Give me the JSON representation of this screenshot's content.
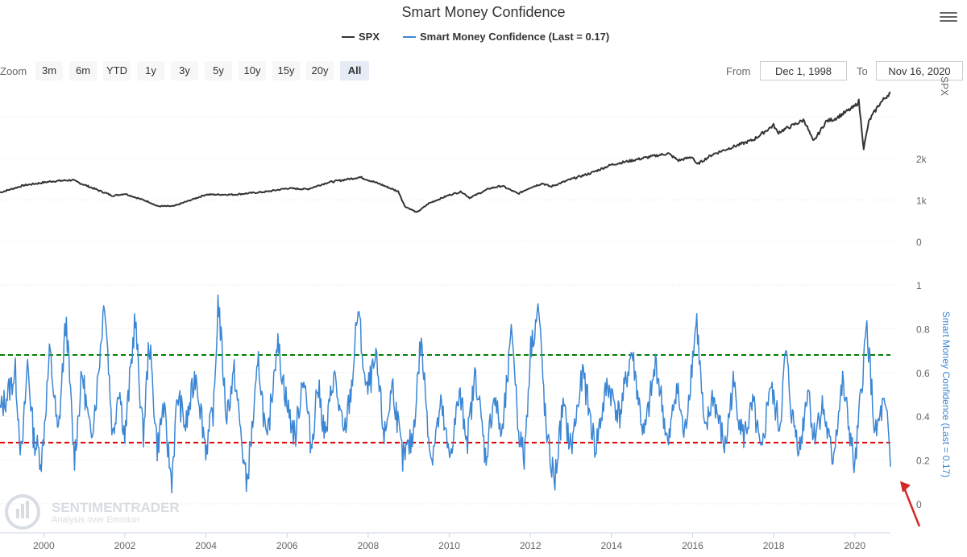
{
  "title": "Smart Money Confidence",
  "legend": [
    {
      "label": "SPX",
      "color": "#333333"
    },
    {
      "label": "Smart Money Confidence (Last = 0.17)",
      "color": "#3b86d4"
    }
  ],
  "zoom": {
    "label": "Zoom",
    "buttons": [
      "3m",
      "6m",
      "YTD",
      "1y",
      "3y",
      "5y",
      "10y",
      "15y",
      "20y",
      "All"
    ],
    "active": "All"
  },
  "range": {
    "from_label": "From",
    "from_value": "Dec 1, 1998",
    "to_label": "To",
    "to_value": "Nov 16, 2020"
  },
  "watermark": {
    "name": "SENTIMENTRADER",
    "tagline": "Analysis over Emotion"
  },
  "menu_icon": "hamburger-menu-icon",
  "chart_data": [
    {
      "type": "line",
      "series": [
        {
          "name": "SPX",
          "color": "#333333",
          "x": [
            1998.92,
            1999.5,
            2000.2,
            2000.7,
            2001.3,
            2001.7,
            2002.0,
            2002.6,
            2002.8,
            2003.2,
            2004.0,
            2004.7,
            2005.5,
            2006.0,
            2006.5,
            2007.0,
            2007.5,
            2007.8,
            2008.3,
            2008.75,
            2008.9,
            2009.2,
            2009.5,
            2010.0,
            2010.3,
            2010.5,
            2011.0,
            2011.3,
            2011.7,
            2012.0,
            2012.3,
            2012.5,
            2013.0,
            2013.5,
            2014.0,
            2014.5,
            2015.0,
            2015.4,
            2015.65,
            2016.0,
            2016.1,
            2016.5,
            2017.0,
            2017.5,
            2018.0,
            2018.1,
            2018.75,
            2018.98,
            2019.3,
            2019.5,
            2020.0,
            2020.1,
            2020.22,
            2020.35,
            2020.6,
            2020.88
          ],
          "y": [
            1180,
            1350,
            1450,
            1480,
            1250,
            1100,
            1150,
            950,
            850,
            850,
            1130,
            1130,
            1200,
            1280,
            1260,
            1420,
            1500,
            1550,
            1380,
            1200,
            850,
            700,
            920,
            1120,
            1200,
            1050,
            1280,
            1340,
            1150,
            1300,
            1400,
            1320,
            1500,
            1650,
            1850,
            1950,
            2050,
            2120,
            1950,
            2040,
            1850,
            2100,
            2280,
            2450,
            2800,
            2620,
            2930,
            2400,
            2900,
            2950,
            3250,
            3380,
            2240,
            2900,
            3300,
            3600
          ]
        },
        {
          "name": "",
          "color": "#d9d9d9",
          "x": [],
          "y": []
        }
      ],
      "ylabel": "SPX",
      "yticks": [
        0,
        1000,
        2000
      ],
      "ytick_labels": [
        "0",
        "1k",
        "2k"
      ],
      "ylim": [
        0,
        3800
      ],
      "xlim": [
        1998.92,
        2020.88
      ],
      "grid": true
    },
    {
      "type": "line",
      "series": [
        {
          "name": "Smart Money Confidence (Last = 0.17)",
          "color": "#3b86d4",
          "x": [
            1998.92,
            1999.1,
            1999.3,
            1999.45,
            1999.6,
            1999.75,
            1999.95,
            2000.15,
            2000.35,
            2000.55,
            2000.75,
            2000.95,
            2001.15,
            2001.3,
            2001.5,
            2001.7,
            2001.85,
            2002.0,
            2002.25,
            2002.45,
            2002.6,
            2002.8,
            2002.95,
            2003.15,
            2003.3,
            2003.5,
            2003.75,
            2004.0,
            2004.2,
            2004.3,
            2004.5,
            2004.7,
            2004.9,
            2005.0,
            2005.3,
            2005.5,
            2005.75,
            2006.0,
            2006.2,
            2006.4,
            2006.6,
            2006.75,
            2006.95,
            2007.15,
            2007.4,
            2007.6,
            2007.75,
            2007.95,
            2008.2,
            2008.4,
            2008.6,
            2008.85,
            2009.1,
            2009.3,
            2009.55,
            2009.8,
            2010.0,
            2010.25,
            2010.45,
            2010.65,
            2010.9,
            2011.1,
            2011.3,
            2011.55,
            2011.7,
            2011.85,
            2012.0,
            2012.2,
            2012.4,
            2012.6,
            2012.8,
            2013.0,
            2013.3,
            2013.6,
            2013.9,
            2014.2,
            2014.5,
            2014.8,
            2015.1,
            2015.4,
            2015.6,
            2015.8,
            2016.1,
            2016.3,
            2016.5,
            2016.8,
            2017.0,
            2017.25,
            2017.5,
            2017.7,
            2017.9,
            2018.15,
            2018.3,
            2018.45,
            2018.65,
            2018.85,
            2018.98,
            2019.2,
            2019.45,
            2019.7,
            2019.9,
            2020.0,
            2020.15,
            2020.3,
            2020.5,
            2020.7,
            2020.82,
            2020.88
          ],
          "y": [
            0.42,
            0.5,
            0.6,
            0.2,
            0.65,
            0.3,
            0.2,
            0.7,
            0.3,
            0.85,
            0.2,
            0.6,
            0.3,
            0.5,
            0.95,
            0.3,
            0.55,
            0.3,
            0.85,
            0.3,
            0.75,
            0.25,
            0.45,
            0.1,
            0.5,
            0.35,
            0.6,
            0.25,
            0.45,
            0.95,
            0.4,
            0.6,
            0.25,
            0.08,
            0.65,
            0.25,
            0.75,
            0.45,
            0.3,
            0.6,
            0.25,
            0.55,
            0.3,
            0.6,
            0.3,
            0.55,
            0.9,
            0.5,
            0.65,
            0.3,
            0.55,
            0.2,
            0.3,
            0.75,
            0.2,
            0.45,
            0.2,
            0.5,
            0.3,
            0.6,
            0.2,
            0.5,
            0.3,
            0.8,
            0.35,
            0.2,
            0.7,
            0.9,
            0.3,
            0.1,
            0.45,
            0.25,
            0.6,
            0.25,
            0.55,
            0.4,
            0.7,
            0.3,
            0.65,
            0.25,
            0.55,
            0.3,
            0.85,
            0.3,
            0.5,
            0.25,
            0.55,
            0.3,
            0.45,
            0.2,
            0.55,
            0.35,
            0.7,
            0.4,
            0.25,
            0.55,
            0.3,
            0.45,
            0.2,
            0.55,
            0.3,
            0.15,
            0.5,
            0.82,
            0.3,
            0.45,
            0.35,
            0.17
          ]
        },
        {
          "name": "",
          "color": "#008000",
          "x": [
            1998.92,
            2020.88
          ],
          "y": [
            0.68,
            0.68
          ]
        },
        {
          "name": "",
          "color": "#e00000",
          "x": [
            1998.92,
            2020.88
          ],
          "y": [
            0.28,
            0.28
          ]
        }
      ],
      "ylabel": "Smart Money Confidence (Last = 0.17)",
      "yticks": [
        0,
        0.2,
        0.4,
        0.6,
        0.8,
        1
      ],
      "ytick_labels": [
        "0",
        "0.2",
        "0.4",
        "0.6",
        "0.8",
        "1"
      ],
      "ylim": [
        0,
        1
      ],
      "xlim": [
        1998.92,
        2020.88
      ],
      "xticks": [
        2000,
        2002,
        2004,
        2006,
        2008,
        2010,
        2012,
        2014,
        2016,
        2018,
        2020
      ],
      "xtick_labels": [
        "2000",
        "2002",
        "2004",
        "2006",
        "2008",
        "2010",
        "2012",
        "2014",
        "2016",
        "2018",
        "2020"
      ],
      "grid": true,
      "annotations": [
        {
          "type": "arrow",
          "color": "#d62728",
          "points_to_x": 2020.88,
          "points_to_y": 0.17
        }
      ]
    }
  ]
}
